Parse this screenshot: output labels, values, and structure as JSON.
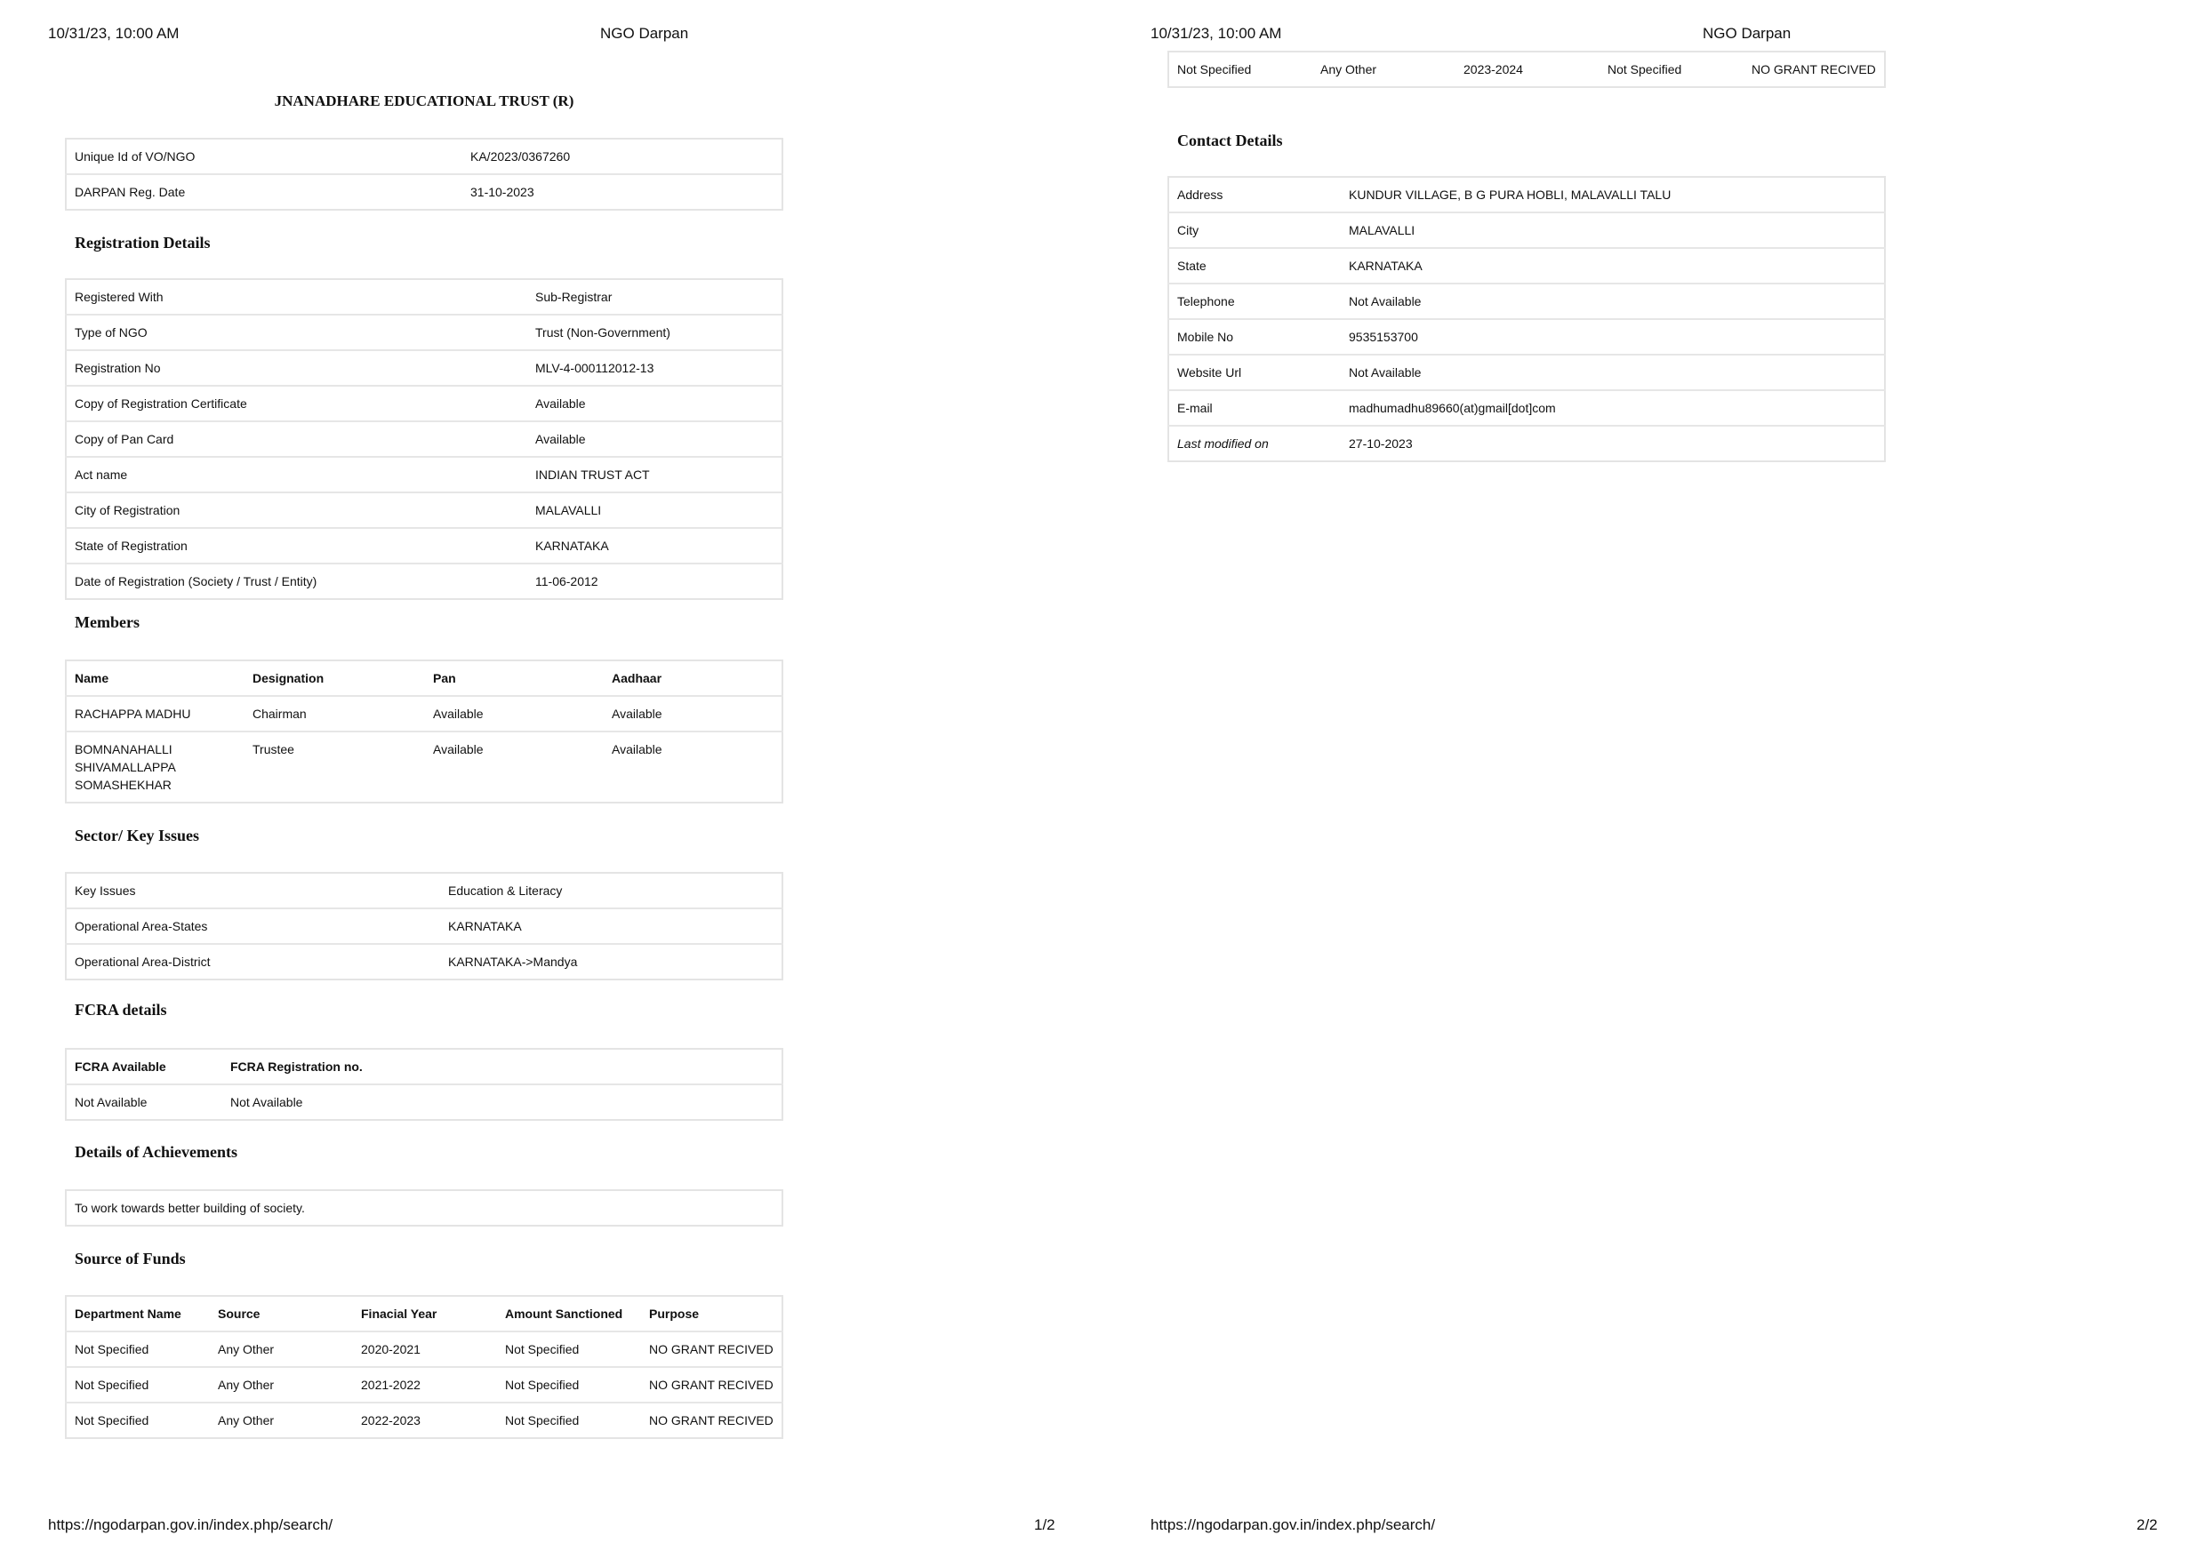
{
  "header": {
    "datetime": "10/31/23, 10:00 AM",
    "site": "NGO Darpan"
  },
  "footer": {
    "url": "https://ngodarpan.gov.in/index.php/search/",
    "page1": "1/2",
    "page2": "2/2"
  },
  "title": "JNANADHARE EDUCATIONAL TRUST (R)",
  "ids": [
    [
      "Unique Id of VO/NGO",
      "KA/2023/0367260"
    ],
    [
      "DARPAN Reg. Date",
      "31-10-2023"
    ]
  ],
  "registration": {
    "heading": "Registration Details",
    "rows": [
      [
        "Registered With",
        "Sub-Registrar"
      ],
      [
        "Type of NGO",
        "Trust (Non-Government)"
      ],
      [
        "Registration No",
        "MLV-4-000112012-13"
      ],
      [
        "Copy of Registration Certificate",
        "Available"
      ],
      [
        "Copy of Pan Card",
        "Available"
      ],
      [
        "Act name",
        "INDIAN TRUST ACT"
      ],
      [
        "City of Registration",
        "MALAVALLI"
      ],
      [
        "State of Registration",
        "KARNATAKA"
      ],
      [
        "Date of Registration (Society / Trust / Entity)",
        "11-06-2012"
      ]
    ]
  },
  "members": {
    "heading": "Members",
    "columns": [
      "Name",
      "Designation",
      "Pan",
      "Aadhaar"
    ],
    "rows": [
      [
        "RACHAPPA MADHU",
        "Chairman",
        "Available",
        "Available"
      ],
      [
        "BOMNANAHALLI SHIVAMALLAPPA SOMASHEKHAR",
        "Trustee",
        "Available",
        "Available"
      ]
    ]
  },
  "sector": {
    "heading": "Sector/ Key Issues",
    "rows": [
      [
        "Key Issues",
        "Education & Literacy"
      ],
      [
        "Operational Area-States",
        "KARNATAKA"
      ],
      [
        "Operational Area-District",
        "KARNATAKA->Mandya"
      ]
    ]
  },
  "fcra": {
    "heading": "FCRA details",
    "columns": [
      "FCRA Available",
      "FCRA Registration no."
    ],
    "rows": [
      [
        "Not Available",
        "Not Available"
      ]
    ]
  },
  "achievements": {
    "heading": "Details of Achievements",
    "text": "To work towards better building of society."
  },
  "funds": {
    "heading": "Source of Funds",
    "columns": [
      "Department Name",
      "Source",
      "Finacial Year",
      "Amount Sanctioned",
      "Purpose"
    ],
    "rows": [
      [
        "Not Specified",
        "Any Other",
        "2020-2021",
        "Not Specified",
        "NO GRANT RECIVED"
      ],
      [
        "Not Specified",
        "Any Other",
        "2021-2022",
        "Not Specified",
        "NO GRANT RECIVED"
      ],
      [
        "Not Specified",
        "Any Other",
        "2022-2023",
        "Not Specified",
        "NO GRANT RECIVED"
      ],
      [
        "Not Specified",
        "Any Other",
        "2023-2024",
        "Not Specified",
        "NO GRANT RECIVED"
      ]
    ]
  },
  "contact": {
    "heading": "Contact Details",
    "rows": [
      [
        "Address",
        "KUNDUR VILLAGE, B G PURA HOBLI, MALAVALLI TALU"
      ],
      [
        "City",
        "MALAVALLI"
      ],
      [
        "State",
        "KARNATAKA"
      ],
      [
        "Telephone",
        "Not Available"
      ],
      [
        "Mobile No",
        "9535153700"
      ],
      [
        "Website Url",
        "Not Available"
      ],
      [
        "E-mail",
        "madhumadhu89660(at)gmail[dot]com"
      ],
      [
        "Last modified on",
        "27-10-2023"
      ]
    ]
  }
}
